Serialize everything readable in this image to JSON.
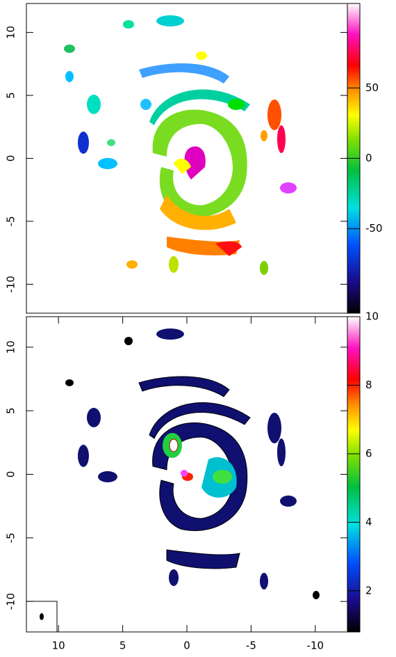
{
  "chart_data": [
    {
      "type": "image",
      "xlim": [
        12.5,
        -12.5
      ],
      "ylim": [
        -12.3,
        12.3
      ],
      "yticks": [
        -10,
        -5,
        0,
        5,
        10
      ],
      "clim": [
        -110,
        110
      ],
      "cticks": [
        -50,
        0,
        50
      ]
    },
    {
      "type": "image",
      "xlim": [
        12.5,
        -12.5
      ],
      "ylim": [
        -12.4,
        12.4
      ],
      "xticks": [
        10,
        5,
        0,
        -5,
        -10
      ],
      "yticks": [
        -10,
        -5,
        0,
        5,
        10
      ],
      "clim": [
        0.8,
        10
      ],
      "cticks": [
        2,
        4,
        6,
        8,
        10
      ]
    }
  ]
}
